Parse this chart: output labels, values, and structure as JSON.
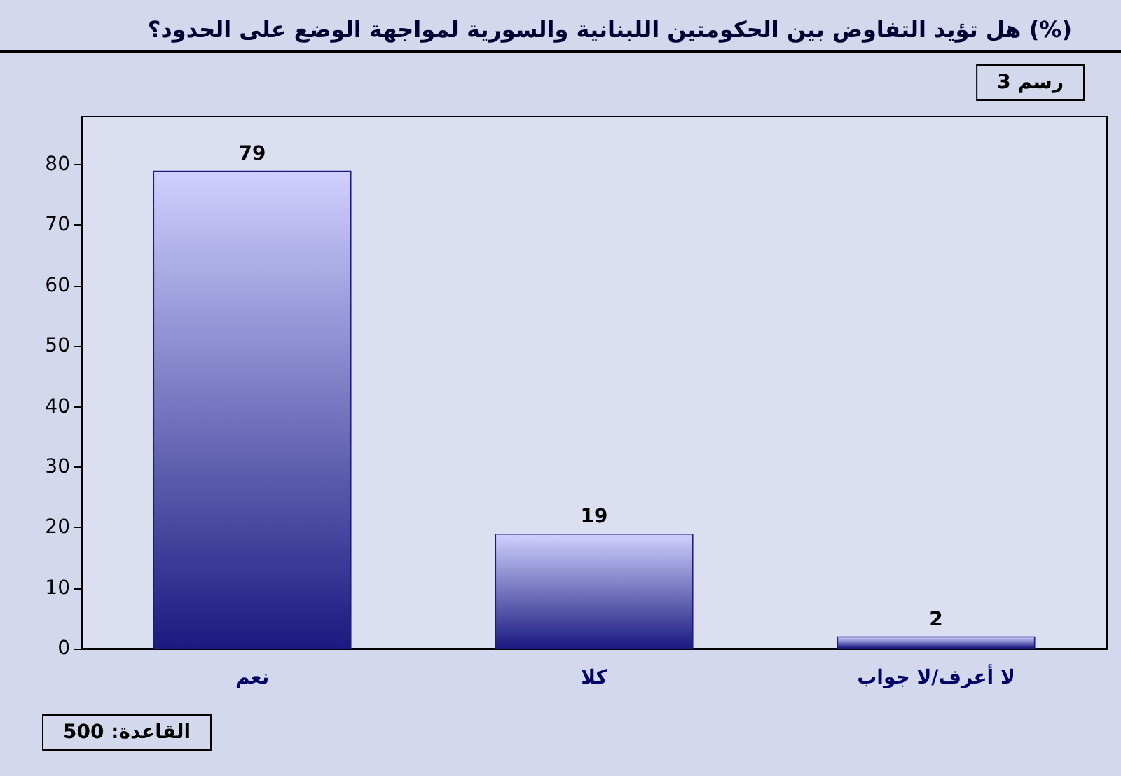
{
  "chart_data": {
    "type": "bar",
    "title": "هل تؤيد التفاوض بين الحكومتين اللبنانية والسورية لمواجهة الوضع على الحدود؟ (%)",
    "categories": [
      "نعم",
      "كلا",
      "لا أعرف/لا جواب"
    ],
    "values": [
      79,
      19,
      2
    ],
    "color": "#1a1a80",
    "ylim": [
      0,
      88
    ],
    "yticks": [
      0,
      10,
      20,
      30,
      40,
      50,
      60,
      70,
      80
    ],
    "grid": false,
    "data_labels": true,
    "annotations": [
      "رسم 3",
      "القاعدة: 500"
    ]
  }
}
